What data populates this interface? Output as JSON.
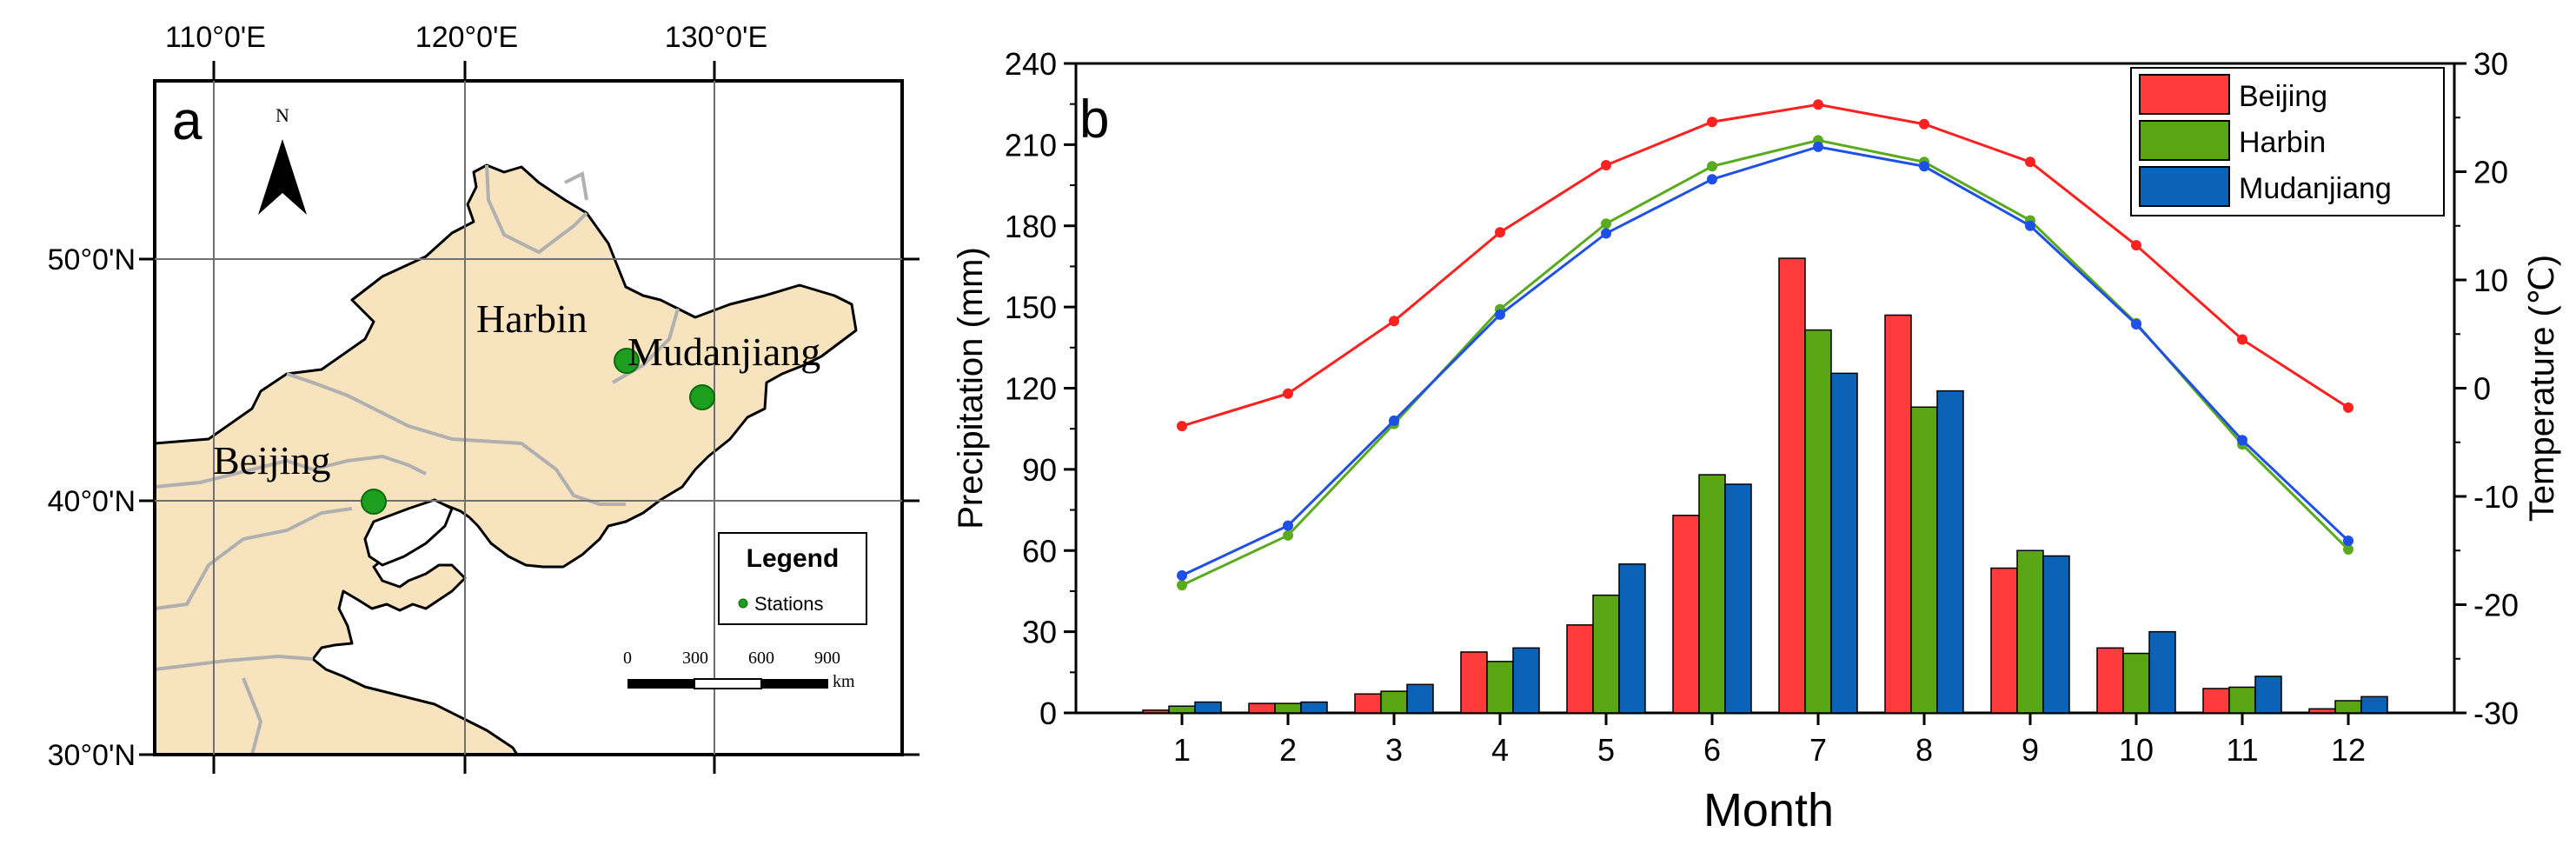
{
  "colors": {
    "land": "#F8E3BF",
    "station": "#1E9E1E",
    "beijing": "#FF3B3B",
    "harbin": "#5AA514",
    "mudanjiang": "#0B63B8",
    "beijing_line": "#FF2020",
    "harbin_line": "#5AAA1E",
    "mudanjiang_line": "#1E4FE6"
  },
  "map": {
    "panel_label": "a",
    "north_label": "N",
    "lon_labels": [
      "110°0'E",
      "120°0'E",
      "130°0'E"
    ],
    "lat_labels": [
      "50°0'N",
      "40°0'N",
      "30°0'N"
    ],
    "cities": [
      "Harbin",
      "Mudanjiang",
      "Beijing"
    ],
    "legend": {
      "title": "Legend",
      "item": "Stations"
    },
    "scale": {
      "ticks": [
        "0",
        "300",
        "600",
        "900"
      ],
      "unit": "km"
    }
  },
  "chart_data": {
    "type": "bar",
    "panel_label": "b",
    "xlabel": "Month",
    "ylabel": "Precipitation (mm)",
    "ylabel_right": "Temperature (℃)",
    "categories": [
      "1",
      "2",
      "3",
      "4",
      "5",
      "6",
      "7",
      "8",
      "9",
      "10",
      "11",
      "12"
    ],
    "ylim": [
      0,
      240
    ],
    "y_ticks": [
      "0",
      "30",
      "60",
      "90",
      "120",
      "150",
      "180",
      "210",
      "240"
    ],
    "y2lim": [
      -30,
      30
    ],
    "y2_ticks": [
      "-30",
      "-20",
      "-10",
      "0",
      "10",
      "20",
      "30"
    ],
    "legend_position": "top-right",
    "series": [
      {
        "name": "Beijing",
        "values": [
          1,
          3.5,
          7,
          22.5,
          32.5,
          73,
          168,
          147,
          53.5,
          24,
          9,
          1.5
        ]
      },
      {
        "name": "Harbin",
        "values": [
          2.5,
          3.5,
          8,
          19,
          43.5,
          88,
          141.5,
          113,
          60,
          22,
          9.5,
          4.5
        ]
      },
      {
        "name": "Mudanjiang",
        "values": [
          4,
          4,
          10.5,
          24,
          55,
          84.5,
          125.5,
          119,
          58,
          30,
          13.5,
          6
        ]
      }
    ],
    "temperature": [
      {
        "name": "Beijing",
        "values": [
          -3.5,
          -0.5,
          6.2,
          14.4,
          20.6,
          24.6,
          26.2,
          24.4,
          20.9,
          13.2,
          4.5,
          -1.8
        ]
      },
      {
        "name": "Harbin",
        "values": [
          -18.2,
          -13.6,
          -3.3,
          7.3,
          15.2,
          20.5,
          22.9,
          20.9,
          15.5,
          6.0,
          -5.2,
          -14.9
        ]
      },
      {
        "name": "Mudanjiang",
        "values": [
          -17.3,
          -12.7,
          -3.0,
          6.8,
          14.3,
          19.3,
          22.3,
          20.5,
          15.0,
          5.9,
          -4.8,
          -14.1
        ]
      }
    ]
  }
}
